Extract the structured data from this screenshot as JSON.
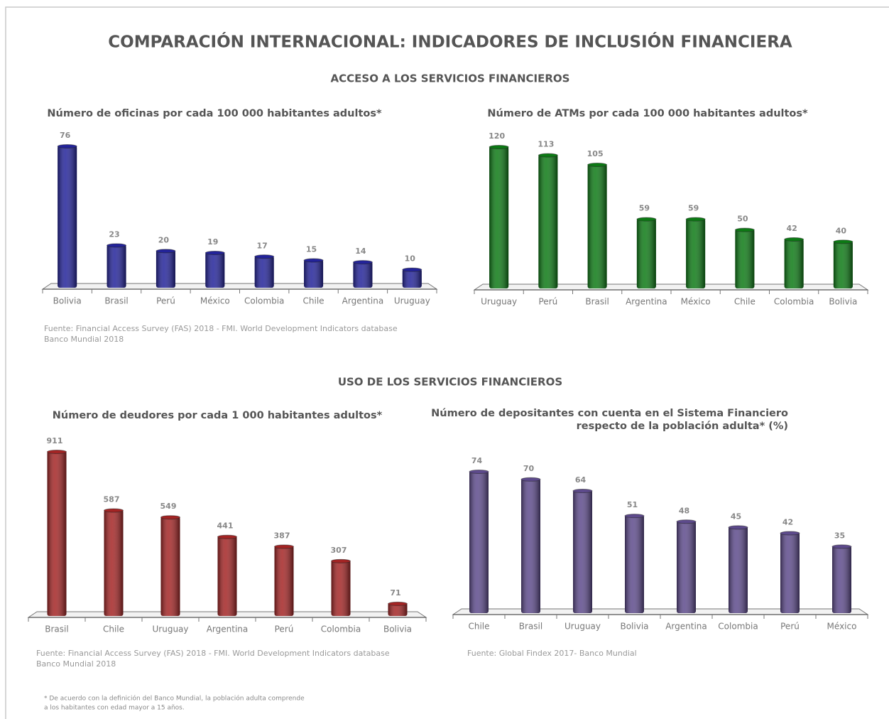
{
  "title": "COMPARACIÓN INTERNACIONAL: INDICADORES DE INCLUSIÓN FINANCIERA",
  "sections": [
    "ACCESO A LOS SERVICIOS FINANCIEROS",
    "USO DE LOS SERVICIOS FINANCIEROS"
  ],
  "footnote": [
    "* De acuerdo con la definición del Banco Mundial, la población adulta comprende",
    "a los habitantes con edad mayor a 15 años."
  ],
  "chart_data": [
    {
      "type": "bar",
      "title": [
        "Número de oficinas por cada 100 000 habitantes adultos*"
      ],
      "categories": [
        "Bolivia",
        "Brasil",
        "Perú",
        "México",
        "Colombia",
        "Chile",
        "Argentina",
        "Uruguay"
      ],
      "values": [
        76,
        23,
        20,
        19,
        17,
        15,
        14,
        10
      ],
      "color": "#23239a",
      "source": [
        "Fuente: Financial Access Survey (FAS) 2018 - FMI. World Development Indicators database",
        "Banco Mundial  2018"
      ]
    },
    {
      "type": "bar",
      "title": [
        "Número de ATMs por cada 100 000 habitantes adultos*"
      ],
      "categories": [
        "Uruguay",
        "Perú",
        "Brasil",
        "Argentina",
        "México",
        "Chile",
        "Colombia",
        "Bolivia"
      ],
      "values": [
        120,
        113,
        105,
        59,
        59,
        50,
        42,
        40
      ],
      "color": "#0c7a14"
    },
    {
      "type": "bar",
      "title": [
        "Número de deudores por cada 1 000 habitantes adultos*"
      ],
      "categories": [
        "Brasil",
        "Chile",
        "Uruguay",
        "Argentina",
        "Perú",
        "Colombia",
        "Bolivia"
      ],
      "values": [
        911,
        587,
        549,
        441,
        387,
        307,
        71
      ],
      "color": "#a42424",
      "source": [
        "Fuente: Financial Access Survey (FAS) 2018 - FMI. World Development Indicators database",
        "Banco Mundial 2018"
      ]
    },
    {
      "type": "bar",
      "title": [
        "Número de depositantes con cuenta en el Sistema Financiero",
        "respecto de la población adulta* (%)"
      ],
      "categories": [
        "Chile",
        "Brasil",
        "Uruguay",
        "Bolivia",
        "Argentina",
        "Colombia",
        "Perú",
        "México"
      ],
      "values": [
        74,
        70,
        64,
        51,
        48,
        45,
        42,
        35
      ],
      "color": "#5d4a8c",
      "source": [
        "Fuente: Global Findex 2017- Banco Mundial"
      ]
    }
  ]
}
